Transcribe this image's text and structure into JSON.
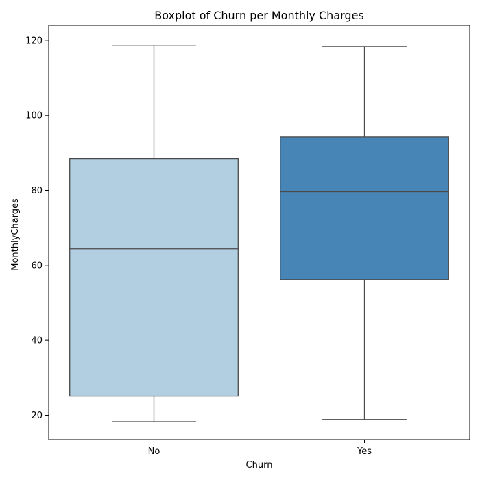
{
  "chart_data": {
    "type": "boxplot",
    "title": "Boxplot of Churn per Monthly Charges",
    "xlabel": "Churn",
    "ylabel": "MonthlyCharges",
    "ylim": [
      13.5,
      124.0
    ],
    "yticks": [
      20,
      40,
      60,
      80,
      100,
      120
    ],
    "grid": false,
    "categories": [
      "No",
      "Yes"
    ],
    "boxes": [
      {
        "category": "No",
        "whisker_low": 18.25,
        "q1": 25.1,
        "median": 64.4,
        "q3": 88.4,
        "whisker_high": 118.75,
        "color": "#b2cfe2"
      },
      {
        "category": "Yes",
        "whisker_low": 18.85,
        "q1": 56.15,
        "median": 79.65,
        "q3": 94.2,
        "whisker_high": 118.35,
        "color": "#4685b5"
      }
    ]
  }
}
